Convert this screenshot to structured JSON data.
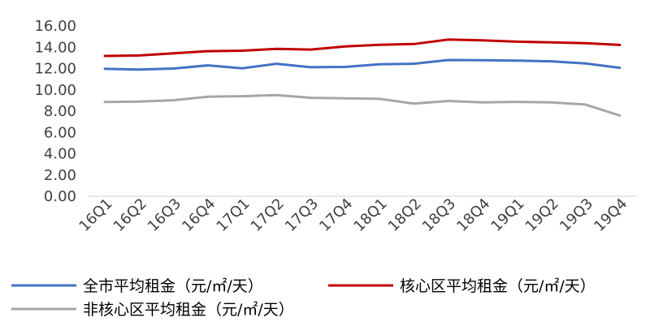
{
  "chart_data": {
    "type": "line",
    "categories": [
      "16Q1",
      "16Q2",
      "16Q3",
      "16Q4",
      "17Q1",
      "17Q2",
      "17Q3",
      "17Q4",
      "18Q1",
      "18Q2",
      "18Q3",
      "18Q4",
      "19Q1",
      "19Q2",
      "19Q3",
      "19Q4"
    ],
    "ylim": [
      0,
      16
    ],
    "yticks": [
      "0.00",
      "2.00",
      "4.00",
      "6.00",
      "8.00",
      "10.00",
      "12.00",
      "14.00",
      "16.00"
    ],
    "grid": false,
    "legend_placement": "bottom",
    "series": [
      {
        "name": "全市平均租金（元/㎡/天）",
        "color": "#4472C4",
        "values": [
          11.97,
          11.9,
          12.0,
          12.3,
          12.02,
          12.45,
          12.12,
          12.15,
          12.4,
          12.45,
          12.8,
          12.78,
          12.74,
          12.68,
          12.48,
          12.07
        ]
      },
      {
        "name": "核心区平均租金（元/㎡/天）",
        "color": "#C00000",
        "values": [
          13.18,
          13.23,
          13.43,
          13.63,
          13.68,
          13.85,
          13.78,
          14.08,
          14.23,
          14.3,
          14.72,
          14.65,
          14.52,
          14.45,
          14.38,
          14.22
        ]
      },
      {
        "name": "非核心区平均租金（元/㎡/天）",
        "color": "#A6A6A6",
        "values": [
          8.85,
          8.9,
          9.02,
          9.35,
          9.4,
          9.5,
          9.25,
          9.2,
          9.15,
          8.7,
          8.95,
          8.82,
          8.87,
          8.82,
          8.62,
          7.58
        ]
      }
    ]
  }
}
